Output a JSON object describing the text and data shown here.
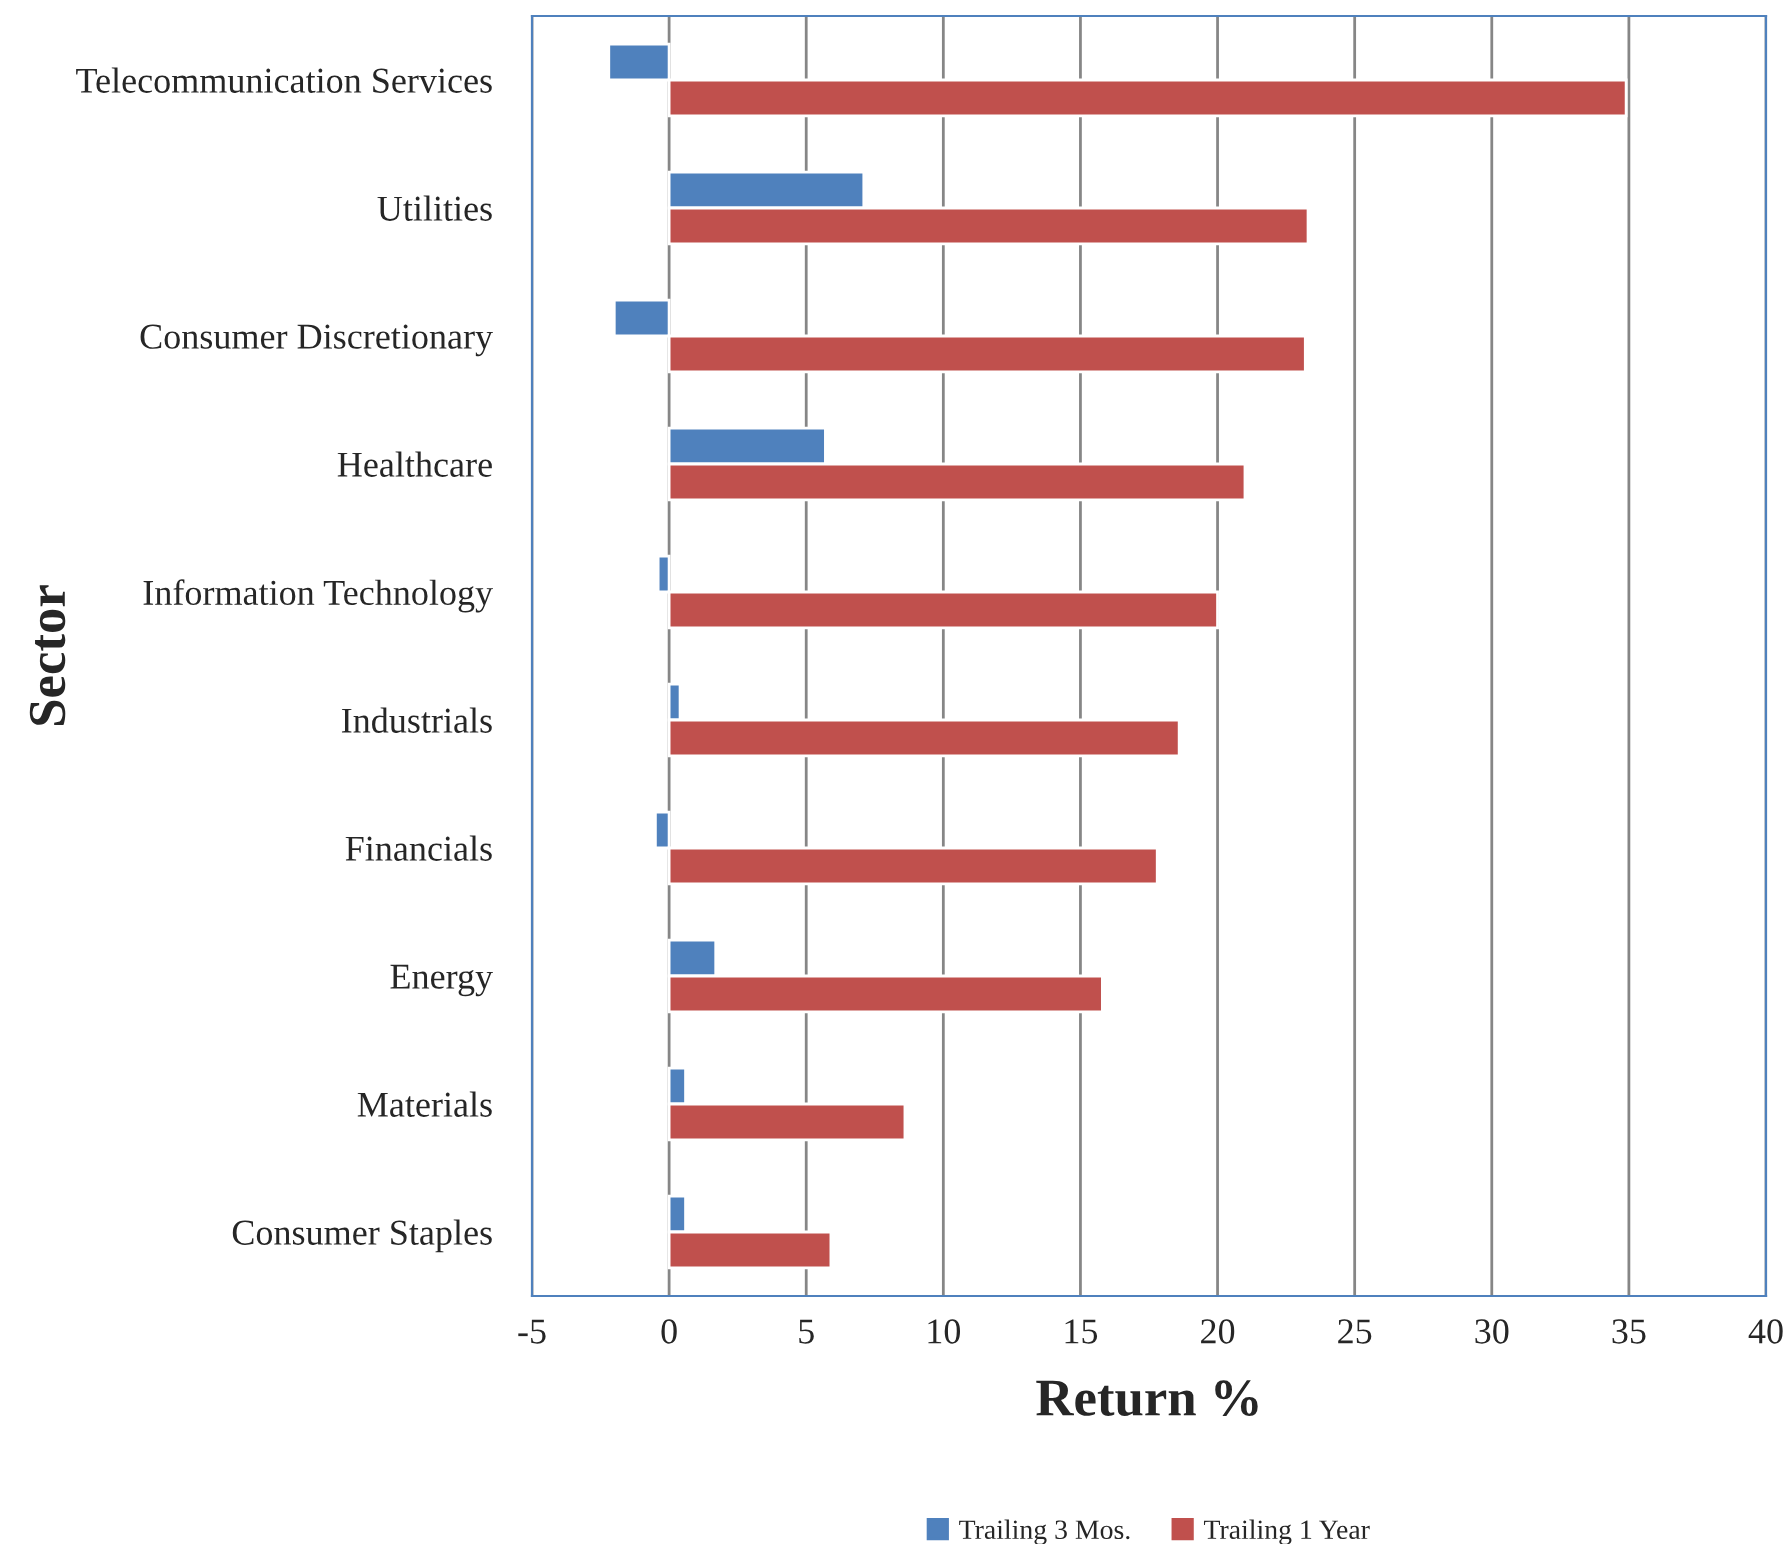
{
  "chart_data": {
    "type": "bar",
    "orientation": "horizontal",
    "xlabel": "Return %",
    "ylabel": "Sector",
    "categories": [
      "Telecommunication Services",
      "Utilities",
      "Consumer Discretionary",
      "Healthcare",
      "Information Technology",
      "Industrials",
      "Financials",
      "Energy",
      "Materials",
      "Consumer Staples"
    ],
    "series": [
      {
        "name": "Trailing 3 Mos.",
        "color": "#4f81bd",
        "values": [
          -2.2,
          7.1,
          -2.0,
          5.7,
          -0.4,
          0.4,
          -0.5,
          1.7,
          0.6,
          0.6
        ]
      },
      {
        "name": "Trailing 1 Year",
        "color": "#c0504d",
        "values": [
          34.9,
          23.3,
          23.2,
          21.0,
          20.0,
          18.6,
          17.8,
          15.8,
          8.6,
          5.9
        ]
      }
    ],
    "xlim": [
      -5,
      40
    ],
    "xticks": [
      -5,
      0,
      5,
      10,
      15,
      20,
      25,
      30,
      35,
      40
    ],
    "grid": "x",
    "legend": "bottom"
  }
}
